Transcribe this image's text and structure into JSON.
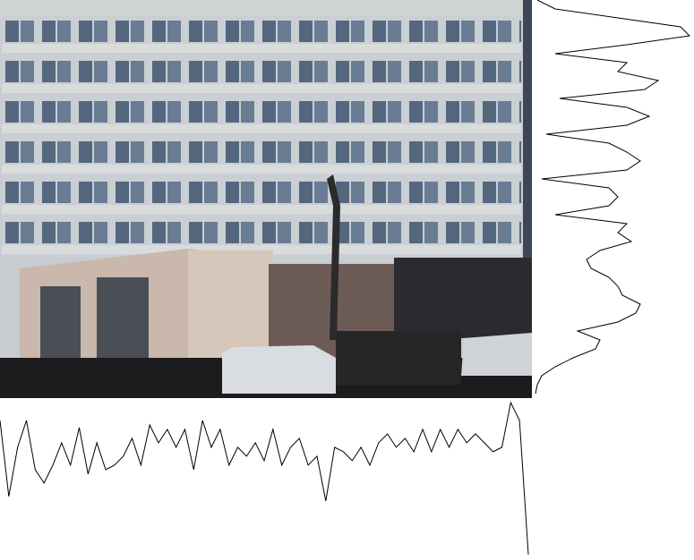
{
  "column_profile": {
    "values": [
      25,
      110,
      55,
      25,
      80,
      95,
      75,
      50,
      75,
      33,
      85,
      50,
      80,
      75,
      65,
      45,
      75,
      30,
      50,
      35,
      55,
      35,
      80,
      25,
      55,
      35,
      75,
      55,
      65,
      50,
      70,
      35,
      75,
      55,
      45,
      75,
      65,
      115,
      55,
      60,
      70,
      55,
      75,
      50,
      40,
      55,
      45,
      60,
      35,
      60,
      35,
      55,
      35,
      50,
      40,
      50,
      60,
      55,
      5,
      25,
      175
    ]
  },
  "row_profile": {
    "values": [
      3,
      23,
      93,
      163,
      173,
      103,
      23,
      103,
      93,
      138,
      123,
      28,
      103,
      128,
      103,
      13,
      83,
      103,
      118,
      103,
      8,
      83,
      93,
      83,
      23,
      103,
      93,
      108,
      73,
      58,
      63,
      83,
      93,
      98,
      118,
      113,
      93,
      48,
      73,
      68,
      43,
      23,
      8,
      3,
      1
    ]
  }
}
